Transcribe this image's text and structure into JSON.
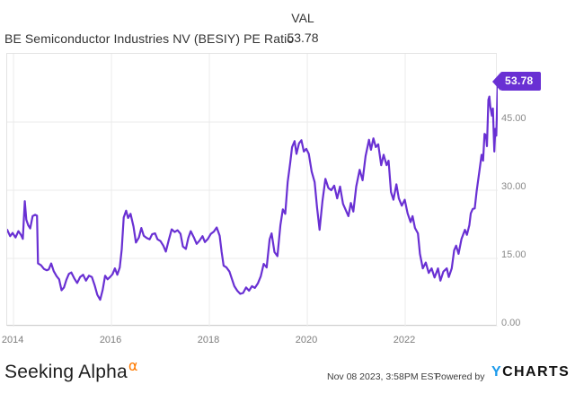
{
  "header": {
    "title": "BE Semiconductor Industries NV (BESIY) PE Ratio",
    "val_label": "VAL",
    "val_value": "53.78"
  },
  "footer": {
    "seeking_alpha_text": "Seeking Alpha",
    "seeking_alpha_glyph": "α",
    "timestamp": "Nov 08 2023, 3:58PM EST.",
    "powered_by": "Powered by",
    "ycharts_y": "Y",
    "ycharts_rest": "CHARTS"
  },
  "colors": {
    "line": "#6930d3",
    "tag_background": "#6930d3",
    "tag_text": "#ffffff",
    "gridline": "#ebebeb",
    "plot_border": "#e3e3e3",
    "axis_bottom": "#cfcfcf",
    "tick_text": "#8a8a8a",
    "title_text": "#333333",
    "seeking_alpha_accent": "#ff7a00",
    "ycharts_blue": "#1c9aeb"
  },
  "chart_data": {
    "type": "line",
    "title": "BE Semiconductor Industries NV (BESIY) PE Ratio",
    "series_name": "PE Ratio",
    "legend_position": "none",
    "grid": true,
    "last_value": 53.78,
    "last_value_label": "53.78",
    "x_domain": [
      2013.87,
      2023.89
    ],
    "y_domain": [
      0,
      60
    ],
    "x_ticks": [
      {
        "value": 2014,
        "label": "2014"
      },
      {
        "value": 2016,
        "label": "2016"
      },
      {
        "value": 2018,
        "label": "2018"
      },
      {
        "value": 2020,
        "label": "2020"
      },
      {
        "value": 2022,
        "label": "2022"
      }
    ],
    "y_ticks": [
      {
        "value": 0,
        "label": "0.00"
      },
      {
        "value": 15,
        "label": "15.00"
      },
      {
        "value": 30,
        "label": "30.00"
      },
      {
        "value": 45,
        "label": "45.00"
      }
    ],
    "points": [
      [
        2013.87,
        21.3
      ],
      [
        2013.93,
        19.9
      ],
      [
        2013.98,
        20.6
      ],
      [
        2014.04,
        19.6
      ],
      [
        2014.1,
        21.0
      ],
      [
        2014.15,
        20.2
      ],
      [
        2014.19,
        19.3
      ],
      [
        2014.23,
        27.6
      ],
      [
        2014.26,
        23.5
      ],
      [
        2014.3,
        22.3
      ],
      [
        2014.34,
        21.6
      ],
      [
        2014.39,
        24.3
      ],
      [
        2014.44,
        24.6
      ],
      [
        2014.48,
        24.4
      ],
      [
        2014.5,
        13.9
      ],
      [
        2014.56,
        13.5
      ],
      [
        2014.62,
        12.7
      ],
      [
        2014.68,
        12.4
      ],
      [
        2014.72,
        12.6
      ],
      [
        2014.77,
        13.9
      ],
      [
        2014.82,
        12.2
      ],
      [
        2014.88,
        11.1
      ],
      [
        2014.93,
        10.4
      ],
      [
        2014.98,
        8.0
      ],
      [
        2015.03,
        8.6
      ],
      [
        2015.08,
        10.3
      ],
      [
        2015.13,
        11.6
      ],
      [
        2015.18,
        11.9
      ],
      [
        2015.24,
        10.6
      ],
      [
        2015.3,
        9.6
      ],
      [
        2015.36,
        10.9
      ],
      [
        2015.42,
        11.4
      ],
      [
        2015.48,
        10.1
      ],
      [
        2015.54,
        11.2
      ],
      [
        2015.6,
        10.9
      ],
      [
        2015.66,
        9.0
      ],
      [
        2015.71,
        7.0
      ],
      [
        2015.77,
        5.9
      ],
      [
        2015.82,
        8.1
      ],
      [
        2015.87,
        11.2
      ],
      [
        2015.92,
        10.4
      ],
      [
        2015.97,
        10.9
      ],
      [
        2016.02,
        11.5
      ],
      [
        2016.07,
        12.8
      ],
      [
        2016.12,
        11.4
      ],
      [
        2016.17,
        13.0
      ],
      [
        2016.21,
        17.0
      ],
      [
        2016.25,
        24.0
      ],
      [
        2016.3,
        25.5
      ],
      [
        2016.34,
        23.9
      ],
      [
        2016.39,
        24.8
      ],
      [
        2016.45,
        22.0
      ],
      [
        2016.5,
        18.5
      ],
      [
        2016.56,
        19.6
      ],
      [
        2016.61,
        21.7
      ],
      [
        2016.66,
        20.0
      ],
      [
        2016.72,
        19.5
      ],
      [
        2016.78,
        19.2
      ],
      [
        2016.83,
        20.3
      ],
      [
        2016.89,
        20.5
      ],
      [
        2016.94,
        19.2
      ],
      [
        2017.0,
        18.8
      ],
      [
        2017.06,
        17.8
      ],
      [
        2017.11,
        16.5
      ],
      [
        2017.17,
        19.0
      ],
      [
        2017.23,
        21.4
      ],
      [
        2017.29,
        20.8
      ],
      [
        2017.35,
        21.2
      ],
      [
        2017.41,
        20.4
      ],
      [
        2017.46,
        17.6
      ],
      [
        2017.52,
        17.1
      ],
      [
        2017.57,
        19.5
      ],
      [
        2017.62,
        21.0
      ],
      [
        2017.68,
        19.7
      ],
      [
        2017.74,
        18.2
      ],
      [
        2017.8,
        18.9
      ],
      [
        2017.86,
        19.9
      ],
      [
        2017.91,
        18.6
      ],
      [
        2017.97,
        19.3
      ],
      [
        2018.03,
        20.4
      ],
      [
        2018.09,
        20.9
      ],
      [
        2018.15,
        21.8
      ],
      [
        2018.21,
        20.0
      ],
      [
        2018.25,
        16.4
      ],
      [
        2018.29,
        13.4
      ],
      [
        2018.35,
        13.0
      ],
      [
        2018.41,
        12.1
      ],
      [
        2018.46,
        10.5
      ],
      [
        2018.51,
        8.9
      ],
      [
        2018.57,
        7.9
      ],
      [
        2018.63,
        7.2
      ],
      [
        2018.69,
        7.4
      ],
      [
        2018.75,
        8.6
      ],
      [
        2018.81,
        7.9
      ],
      [
        2018.87,
        8.9
      ],
      [
        2018.93,
        8.5
      ],
      [
        2018.99,
        9.5
      ],
      [
        2019.05,
        11.1
      ],
      [
        2019.11,
        13.8
      ],
      [
        2019.17,
        13.0
      ],
      [
        2019.23,
        19.2
      ],
      [
        2019.27,
        20.5
      ],
      [
        2019.33,
        16.4
      ],
      [
        2019.39,
        15.5
      ],
      [
        2019.45,
        22.3
      ],
      [
        2019.5,
        25.8
      ],
      [
        2019.55,
        24.8
      ],
      [
        2019.6,
        31.8
      ],
      [
        2019.65,
        36.0
      ],
      [
        2019.69,
        39.5
      ],
      [
        2019.74,
        40.8
      ],
      [
        2019.78,
        38.0
      ],
      [
        2019.83,
        40.3
      ],
      [
        2019.88,
        41.0
      ],
      [
        2019.93,
        38.5
      ],
      [
        2019.98,
        39.1
      ],
      [
        2020.03,
        38.0
      ],
      [
        2020.09,
        34.1
      ],
      [
        2020.15,
        31.8
      ],
      [
        2020.2,
        26.2
      ],
      [
        2020.25,
        21.3
      ],
      [
        2020.31,
        27.6
      ],
      [
        2020.37,
        32.5
      ],
      [
        2020.43,
        30.5
      ],
      [
        2020.49,
        30.0
      ],
      [
        2020.55,
        31.0
      ],
      [
        2020.61,
        28.2
      ],
      [
        2020.67,
        30.8
      ],
      [
        2020.73,
        27.0
      ],
      [
        2020.78,
        25.8
      ],
      [
        2020.84,
        24.3
      ],
      [
        2020.89,
        27.2
      ],
      [
        2020.94,
        25.3
      ],
      [
        2021.0,
        30.8
      ],
      [
        2021.07,
        34.5
      ],
      [
        2021.13,
        32.2
      ],
      [
        2021.19,
        37.5
      ],
      [
        2021.26,
        41.1
      ],
      [
        2021.3,
        38.9
      ],
      [
        2021.35,
        41.4
      ],
      [
        2021.4,
        39.5
      ],
      [
        2021.45,
        40.1
      ],
      [
        2021.51,
        35.5
      ],
      [
        2021.56,
        37.8
      ],
      [
        2021.62,
        35.5
      ],
      [
        2021.66,
        36.5
      ],
      [
        2021.71,
        29.6
      ],
      [
        2021.76,
        27.9
      ],
      [
        2021.82,
        31.3
      ],
      [
        2021.87,
        28.2
      ],
      [
        2021.93,
        26.6
      ],
      [
        2021.99,
        27.9
      ],
      [
        2022.05,
        24.9
      ],
      [
        2022.11,
        23.0
      ],
      [
        2022.15,
        24.3
      ],
      [
        2022.2,
        21.7
      ],
      [
        2022.26,
        20.5
      ],
      [
        2022.3,
        16.0
      ],
      [
        2022.36,
        12.8
      ],
      [
        2022.42,
        14.1
      ],
      [
        2022.48,
        11.8
      ],
      [
        2022.54,
        12.8
      ],
      [
        2022.6,
        10.8
      ],
      [
        2022.67,
        12.8
      ],
      [
        2022.72,
        10.1
      ],
      [
        2022.78,
        12.1
      ],
      [
        2022.85,
        12.8
      ],
      [
        2022.89,
        10.9
      ],
      [
        2022.95,
        12.8
      ],
      [
        2023.0,
        16.8
      ],
      [
        2023.04,
        17.8
      ],
      [
        2023.09,
        16.0
      ],
      [
        2023.15,
        19.3
      ],
      [
        2023.22,
        21.3
      ],
      [
        2023.26,
        20.2
      ],
      [
        2023.31,
        22.3
      ],
      [
        2023.34,
        24.9
      ],
      [
        2023.38,
        25.9
      ],
      [
        2023.42,
        26.0
      ],
      [
        2023.46,
        29.9
      ],
      [
        2023.49,
        32.2
      ],
      [
        2023.52,
        34.5
      ],
      [
        2023.56,
        37.8
      ],
      [
        2023.59,
        36.5
      ],
      [
        2023.62,
        42.4
      ],
      [
        2023.65,
        42.1
      ],
      [
        2023.67,
        39.7
      ],
      [
        2023.7,
        49.9
      ],
      [
        2023.72,
        50.6
      ],
      [
        2023.74,
        48.3
      ],
      [
        2023.77,
        46.4
      ],
      [
        2023.79,
        48.0
      ],
      [
        2023.82,
        38.5
      ],
      [
        2023.84,
        43.5
      ],
      [
        2023.86,
        42.0
      ],
      [
        2023.89,
        53.78
      ]
    ]
  }
}
